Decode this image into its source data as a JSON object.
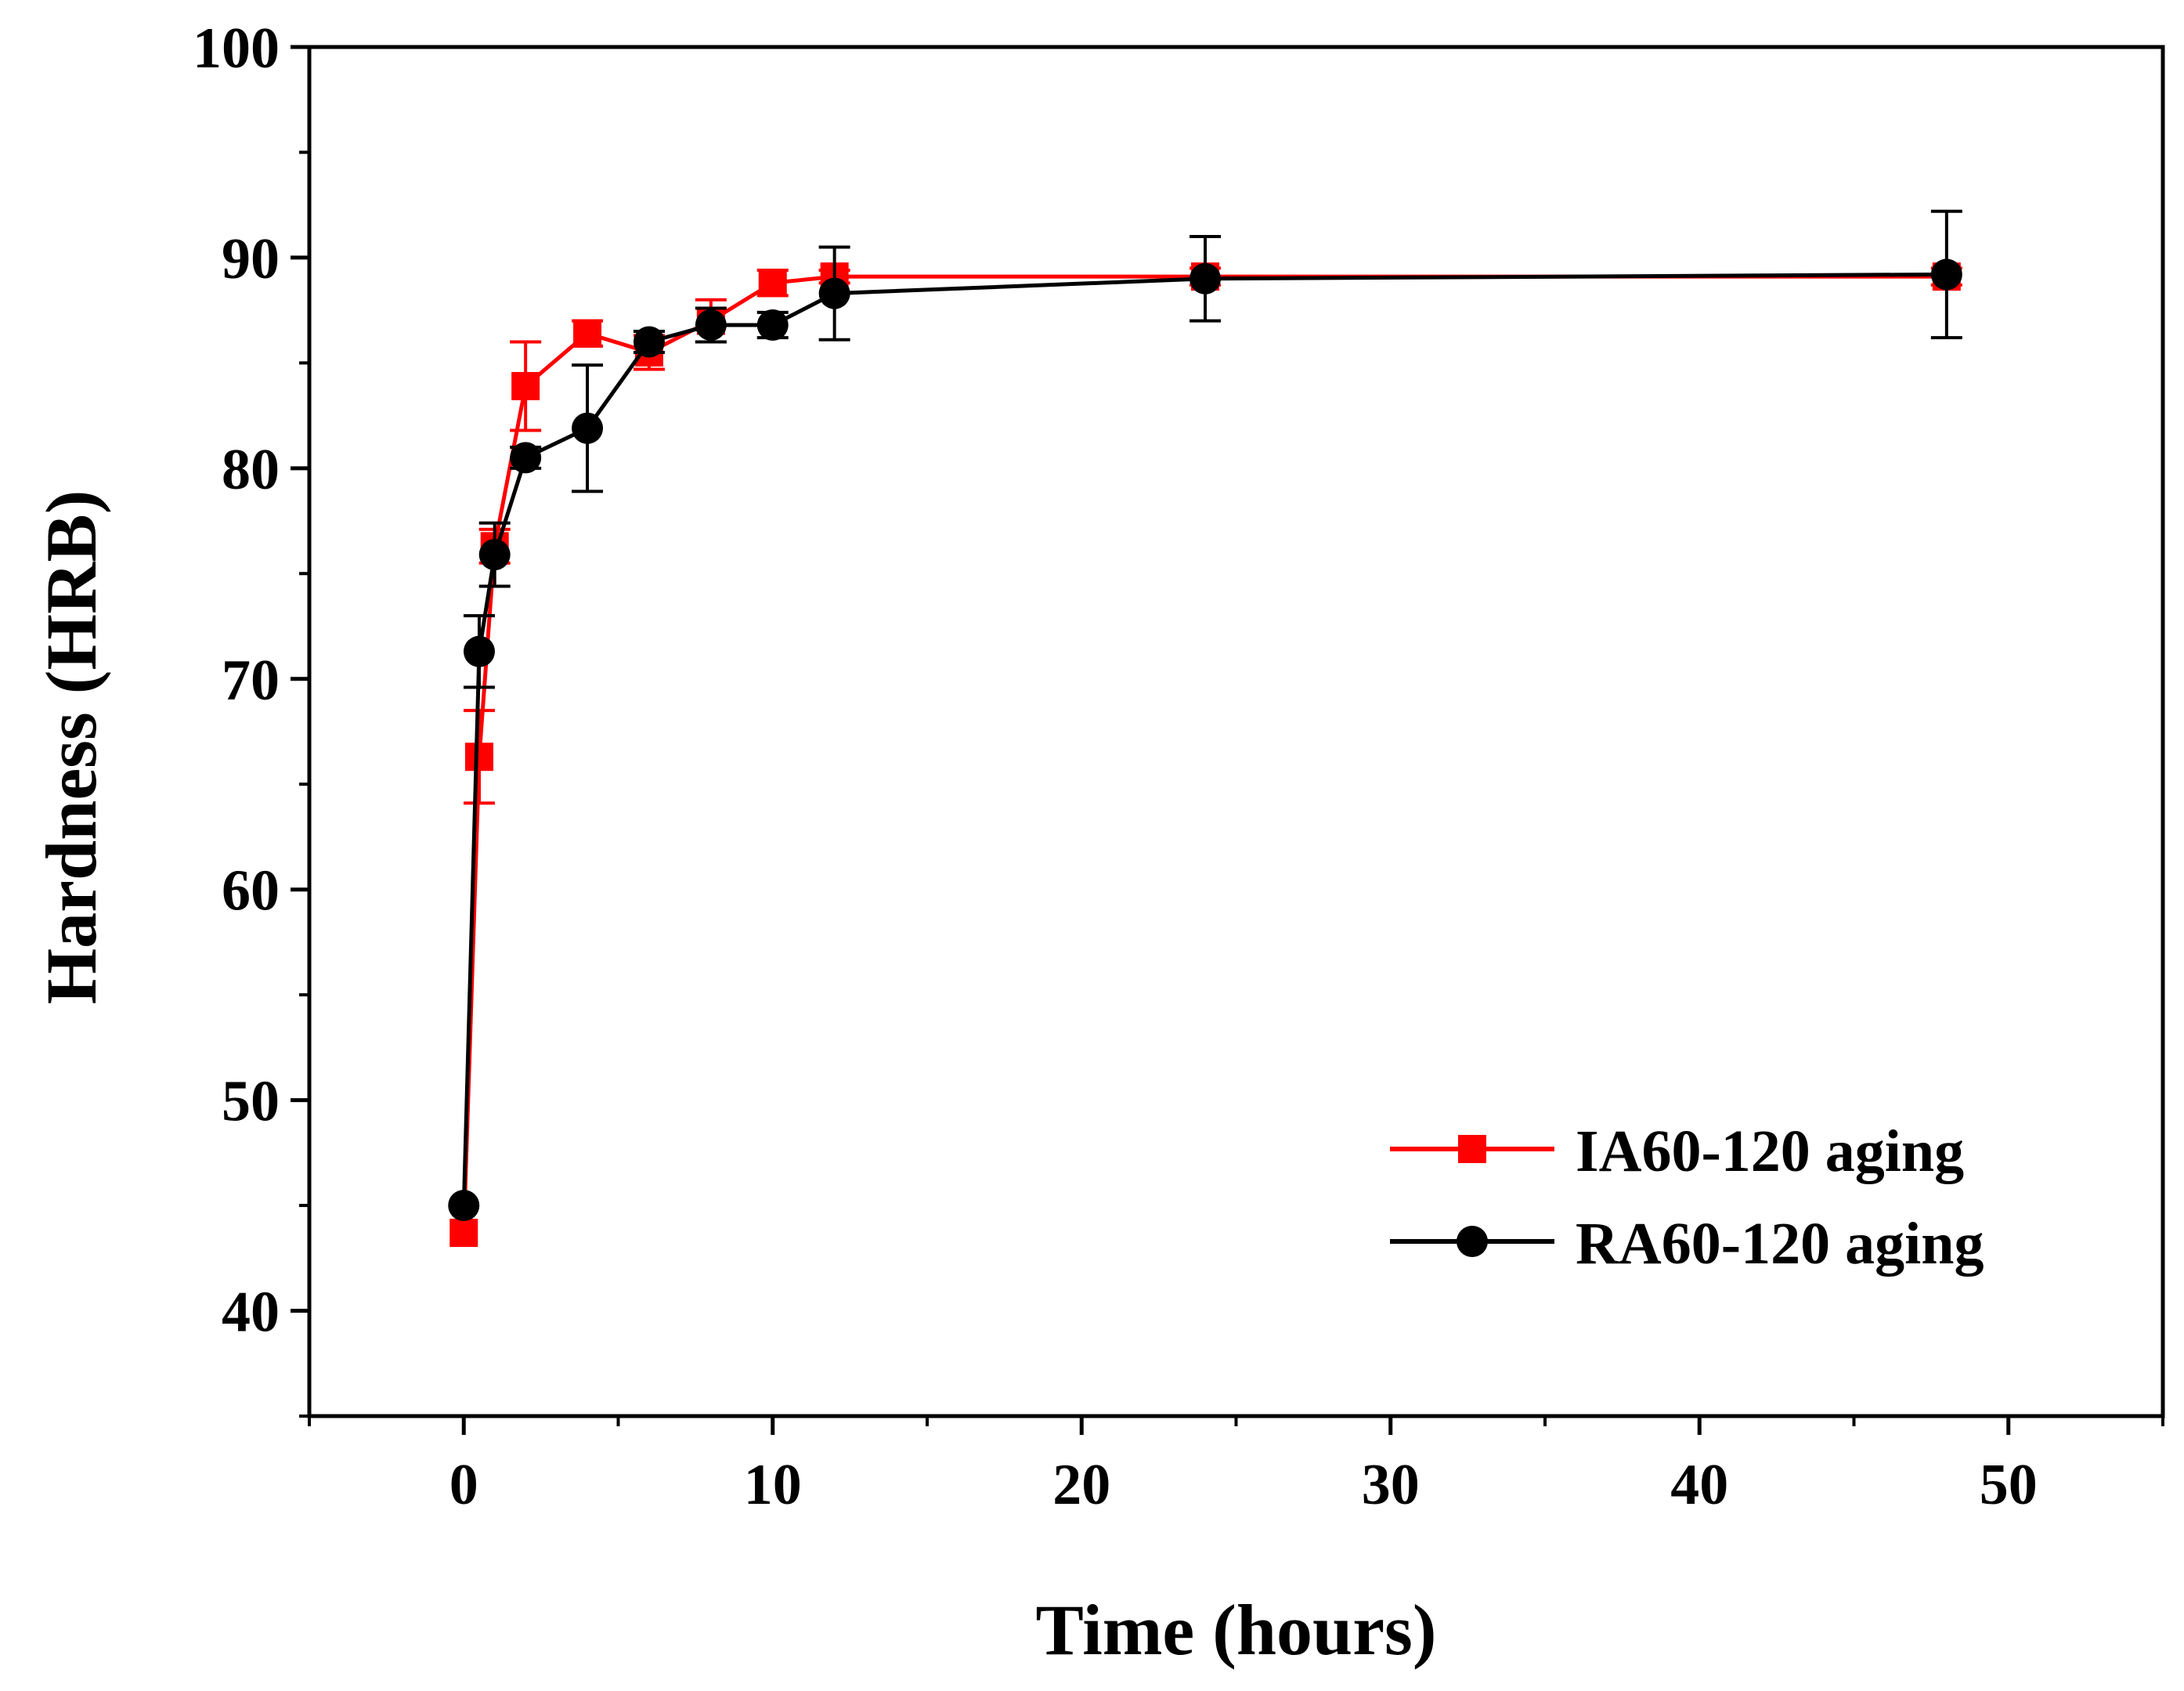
{
  "chart_data": {
    "type": "line",
    "title": "",
    "xlabel": "Time (hours)",
    "ylabel": "Hardness (HRB)",
    "xlim": [
      -5,
      55
    ],
    "ylim": [
      35,
      100
    ],
    "x_ticks": [
      0,
      10,
      20,
      30,
      40,
      50
    ],
    "x_tick_labels": [
      "0",
      "10",
      "20",
      "30",
      "40",
      "50"
    ],
    "y_ticks": [
      40,
      50,
      60,
      70,
      80,
      90,
      100
    ],
    "y_tick_labels": [
      "40",
      "50",
      "60",
      "70",
      "80",
      "90",
      "100"
    ],
    "x_minor_ticks": [
      -5,
      5,
      15,
      25,
      35,
      45,
      55
    ],
    "y_minor_ticks": [
      35,
      45,
      55,
      65,
      75,
      85,
      95
    ],
    "grid": false,
    "legend_position": "bottom-right",
    "series": [
      {
        "name": "IA60-120 aging",
        "color": "#ff0000",
        "marker": "square",
        "x": [
          0,
          0.5,
          1,
          2,
          4,
          6,
          8,
          10,
          12,
          24,
          48
        ],
        "y": [
          43.7,
          66.3,
          76.3,
          83.9,
          86.4,
          85.5,
          87.0,
          88.8,
          89.1,
          89.1,
          89.1
        ],
        "err": [
          0,
          2.2,
          0.8,
          2.1,
          0.6,
          0.8,
          1.0,
          0.6,
          0.3,
          0.4,
          0.4
        ]
      },
      {
        "name": "RA60-120 aging",
        "color": "#000000",
        "marker": "circle",
        "x": [
          0,
          0.5,
          1,
          2,
          4,
          6,
          8,
          10,
          12,
          24,
          48
        ],
        "y": [
          45.0,
          71.3,
          75.9,
          80.5,
          81.9,
          86.0,
          86.8,
          86.8,
          88.3,
          89.0,
          89.2
        ],
        "err": [
          0,
          1.7,
          1.5,
          0.5,
          3.0,
          0.5,
          0.8,
          0.6,
          2.2,
          2.0,
          3.0
        ]
      }
    ]
  }
}
